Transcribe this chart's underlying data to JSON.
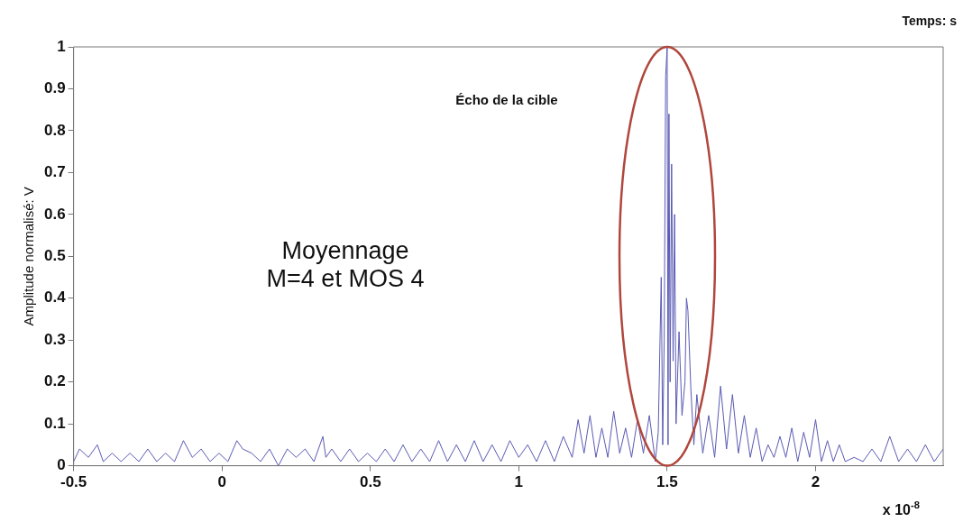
{
  "chart_data": {
    "type": "line",
    "xlabel": "Temps: s",
    "ylabel": "Amplitude normalisé: V",
    "annotations": [
      "Écho de la cible",
      "Moyennage\nM=4 et MOS 4",
      "x 10$^{-8}$"
    ],
    "xlim": [
      -0.5,
      2.43
    ],
    "xticks": [
      -0.5,
      0,
      0.5,
      1,
      1.5,
      2
    ],
    "ylim": [
      0,
      1
    ],
    "yticks": [
      0,
      0.1,
      0.2,
      0.3,
      0.4,
      0.5,
      0.6,
      0.7,
      0.8,
      0.9,
      1
    ],
    "grid": false,
    "legend": false,
    "marker": "none",
    "line_style": "solid",
    "series": [
      {
        "color": "#5a5ab4",
        "x": [
          -0.5,
          -0.48,
          -0.45,
          -0.42,
          -0.4,
          -0.37,
          -0.34,
          -0.31,
          -0.28,
          -0.25,
          -0.22,
          -0.19,
          -0.16,
          -0.13,
          -0.1,
          -0.07,
          -0.04,
          -0.01,
          0.02,
          0.05,
          0.07,
          0.1,
          0.13,
          0.16,
          0.19,
          0.22,
          0.25,
          0.28,
          0.31,
          0.34,
          0.35,
          0.37,
          0.4,
          0.43,
          0.46,
          0.49,
          0.52,
          0.55,
          0.58,
          0.61,
          0.64,
          0.67,
          0.7,
          0.73,
          0.76,
          0.79,
          0.82,
          0.85,
          0.88,
          0.91,
          0.94,
          0.97,
          1.0,
          1.03,
          1.06,
          1.09,
          1.12,
          1.15,
          1.18,
          1.2,
          1.22,
          1.24,
          1.26,
          1.28,
          1.3,
          1.32,
          1.34,
          1.36,
          1.38,
          1.4,
          1.42,
          1.44,
          1.46,
          1.47,
          1.48,
          1.485,
          1.49,
          1.495,
          1.5,
          1.503,
          1.506,
          1.51,
          1.515,
          1.52,
          1.525,
          1.53,
          1.54,
          1.55,
          1.56,
          1.565,
          1.57,
          1.58,
          1.59,
          1.6,
          1.62,
          1.64,
          1.66,
          1.68,
          1.7,
          1.72,
          1.74,
          1.76,
          1.78,
          1.8,
          1.82,
          1.84,
          1.86,
          1.88,
          1.9,
          1.92,
          1.94,
          1.96,
          1.98,
          2.0,
          2.02,
          2.04,
          2.06,
          2.08,
          2.1,
          2.13,
          2.16,
          2.19,
          2.22,
          2.25,
          2.28,
          2.31,
          2.34,
          2.37,
          2.4,
          2.43
        ],
        "values": [
          0.01,
          0.04,
          0.02,
          0.05,
          0.01,
          0.03,
          0.01,
          0.03,
          0.01,
          0.04,
          0.01,
          0.03,
          0.01,
          0.06,
          0.02,
          0.04,
          0.01,
          0.03,
          0.01,
          0.06,
          0.04,
          0.03,
          0.01,
          0.04,
          0.0,
          0.04,
          0.02,
          0.04,
          0.01,
          0.07,
          0.02,
          0.04,
          0.01,
          0.04,
          0.01,
          0.03,
          0.01,
          0.04,
          0.01,
          0.05,
          0.01,
          0.04,
          0.01,
          0.06,
          0.01,
          0.05,
          0.01,
          0.06,
          0.01,
          0.05,
          0.01,
          0.06,
          0.02,
          0.05,
          0.01,
          0.06,
          0.01,
          0.07,
          0.02,
          0.11,
          0.03,
          0.12,
          0.02,
          0.09,
          0.02,
          0.13,
          0.03,
          0.09,
          0.02,
          0.11,
          0.03,
          0.12,
          0.01,
          0.08,
          0.45,
          0.05,
          0.3,
          0.93,
          1.0,
          0.05,
          0.84,
          0.2,
          0.72,
          0.25,
          0.6,
          0.1,
          0.32,
          0.12,
          0.2,
          0.4,
          0.37,
          0.18,
          0.05,
          0.17,
          0.03,
          0.12,
          0.02,
          0.19,
          0.04,
          0.17,
          0.03,
          0.12,
          0.02,
          0.09,
          0.01,
          0.05,
          0.02,
          0.07,
          0.02,
          0.09,
          0.01,
          0.08,
          0.02,
          0.11,
          0.01,
          0.06,
          0.01,
          0.05,
          0.01,
          0.02,
          0.01,
          0.04,
          0.01,
          0.07,
          0.01,
          0.04,
          0.01,
          0.05,
          0.01,
          0.04
        ]
      }
    ]
  }
}
